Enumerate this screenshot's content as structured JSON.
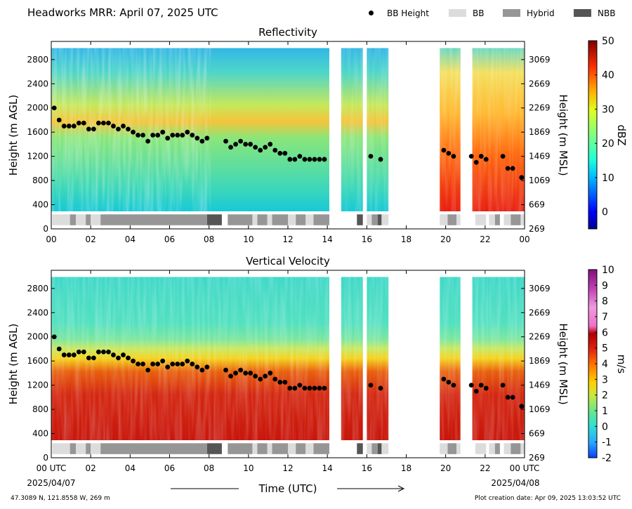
{
  "title": "Headworks MRR:  April 07, 2025 UTC",
  "legend": [
    {
      "label": "BB Height",
      "kind": "marker",
      "color": "#000000"
    },
    {
      "label": "BB",
      "kind": "swatch",
      "color": "#dcdcdc"
    },
    {
      "label": "Hybrid",
      "kind": "swatch",
      "color": "#969696"
    },
    {
      "label": "NBB",
      "kind": "swatch",
      "color": "#555555"
    }
  ],
  "footer": {
    "location": "47.3089 N, 121.8558 W, 269 m",
    "created": "Plot creation date: Apr 09, 2025 13:03:52 UTC"
  },
  "shared": {
    "xlabel": "Time (UTC)",
    "x_ticks": [
      "00",
      "02",
      "04",
      "06",
      "08",
      "10",
      "12",
      "14",
      "16",
      "18",
      "20",
      "22",
      "00"
    ],
    "x_ticks_bottom": [
      "00 UTC",
      "02",
      "04",
      "06",
      "08",
      "10",
      "12",
      "14",
      "16",
      "18",
      "20",
      "22",
      "00 UTC"
    ],
    "x_start_date": "2025/04/07",
    "x_end_date": "2025/04/08",
    "left_ylabel": "Height (m AGL)",
    "right_ylabel": "Height (m MSL)",
    "left_ticks": [
      0,
      400,
      800,
      1200,
      1600,
      2000,
      2400,
      2800
    ],
    "right_ticks": [
      269,
      669,
      1069,
      1469,
      1869,
      2269,
      2669,
      3069
    ],
    "xlim_hours": [
      0,
      24
    ],
    "ylim_m_agl": [
      0,
      3100
    ],
    "data_gaps_hours": [
      [
        14.1,
        14.7
      ],
      [
        15.8,
        16.0
      ],
      [
        17.1,
        19.7
      ],
      [
        20.75,
        21.35
      ]
    ]
  },
  "chart_data": [
    {
      "type": "heatmap",
      "title": "Reflectivity",
      "xlabel": "",
      "ylabel": "Height (m AGL)",
      "ylabel_right": "Height (m MSL)",
      "colorbar": {
        "label": "dBZ",
        "ticks": [
          0,
          10,
          20,
          30,
          40,
          50
        ],
        "range": [
          -5,
          50
        ]
      },
      "series": [
        {
          "name": "BB Height",
          "x": [
            0.15,
            0.4,
            0.65,
            0.9,
            1.15,
            1.4,
            1.65,
            1.9,
            2.15,
            2.4,
            2.65,
            2.9,
            3.15,
            3.4,
            3.65,
            3.9,
            4.15,
            4.4,
            4.65,
            4.9,
            5.15,
            5.4,
            5.65,
            5.9,
            6.15,
            6.4,
            6.65,
            6.9,
            7.15,
            7.4,
            7.65,
            7.9,
            8.85,
            9.1,
            9.35,
            9.6,
            9.85,
            10.1,
            10.35,
            10.6,
            10.85,
            11.1,
            11.35,
            11.6,
            11.85,
            12.1,
            12.35,
            12.6,
            12.85,
            13.1,
            13.35,
            13.6,
            13.85,
            16.2,
            16.7,
            19.9,
            20.15,
            20.4,
            21.3,
            21.55,
            21.8,
            22.05,
            22.9,
            23.15,
            23.4,
            23.85
          ],
          "values": [
            2000,
            1800,
            1700,
            1700,
            1700,
            1750,
            1750,
            1650,
            1650,
            1750,
            1750,
            1750,
            1700,
            1650,
            1700,
            1650,
            1600,
            1550,
            1550,
            1450,
            1550,
            1550,
            1600,
            1500,
            1550,
            1550,
            1550,
            1600,
            1550,
            1500,
            1450,
            1500,
            1450,
            1350,
            1400,
            1450,
            1400,
            1400,
            1350,
            1300,
            1350,
            1400,
            1300,
            1250,
            1250,
            1150,
            1150,
            1200,
            1150,
            1150,
            1150,
            1150,
            1150,
            1200,
            1150,
            1300,
            1250,
            1200,
            1200,
            1100,
            1200,
            1150,
            1200,
            1000,
            1000,
            850
          ]
        }
      ],
      "bb_classification": [
        {
          "class": "BB",
          "start": 0.05,
          "end": 0.95
        },
        {
          "class": "Hybrid",
          "start": 0.95,
          "end": 1.25
        },
        {
          "class": "BB",
          "start": 1.25,
          "end": 1.75
        },
        {
          "class": "Hybrid",
          "start": 1.75,
          "end": 2.0
        },
        {
          "class": "BB",
          "start": 2.0,
          "end": 2.5
        },
        {
          "class": "Hybrid",
          "start": 2.5,
          "end": 7.9
        },
        {
          "class": "NBB",
          "start": 7.9,
          "end": 8.65
        },
        {
          "class": "Hybrid",
          "start": 8.95,
          "end": 10.2
        },
        {
          "class": "BB",
          "start": 10.2,
          "end": 10.45
        },
        {
          "class": "Hybrid",
          "start": 10.45,
          "end": 10.95
        },
        {
          "class": "BB",
          "start": 10.95,
          "end": 11.2
        },
        {
          "class": "Hybrid",
          "start": 11.2,
          "end": 12.0
        },
        {
          "class": "BB",
          "start": 12.0,
          "end": 12.4
        },
        {
          "class": "Hybrid",
          "start": 12.4,
          "end": 12.9
        },
        {
          "class": "BB",
          "start": 12.9,
          "end": 13.3
        },
        {
          "class": "Hybrid",
          "start": 13.3,
          "end": 14.1
        },
        {
          "class": "NBB",
          "start": 15.5,
          "end": 15.8
        },
        {
          "class": "BB",
          "start": 16.0,
          "end": 16.25
        },
        {
          "class": "Hybrid",
          "start": 16.25,
          "end": 16.55
        },
        {
          "class": "NBB",
          "start": 16.55,
          "end": 16.75
        },
        {
          "class": "BB",
          "start": 16.75,
          "end": 17.1
        },
        {
          "class": "BB",
          "start": 19.7,
          "end": 20.1
        },
        {
          "class": "Hybrid",
          "start": 20.1,
          "end": 20.55
        },
        {
          "class": "BB",
          "start": 20.55,
          "end": 20.75
        },
        {
          "class": "BB",
          "start": 21.5,
          "end": 22.05
        },
        {
          "class": "BB",
          "start": 22.2,
          "end": 22.5
        },
        {
          "class": "Hybrid",
          "start": 22.5,
          "end": 22.75
        },
        {
          "class": "BB",
          "start": 22.95,
          "end": 23.3
        },
        {
          "class": "Hybrid",
          "start": 23.3,
          "end": 23.8
        },
        {
          "class": "BB",
          "start": 23.8,
          "end": 24.0
        }
      ]
    },
    {
      "type": "heatmap",
      "title": "Vertical Velocity",
      "xlabel": "Time (UTC)",
      "ylabel": "Height (m AGL)",
      "ylabel_right": "Height (m MSL)",
      "colorbar": {
        "label": "m/s",
        "ticks": [
          -2,
          -1,
          0,
          1,
          2,
          3,
          4,
          5,
          6,
          7,
          8,
          9,
          10
        ],
        "range": [
          -2,
          10
        ]
      },
      "series": [
        {
          "name": "BB Height",
          "x": [
            0.15,
            0.4,
            0.65,
            0.9,
            1.15,
            1.4,
            1.65,
            1.9,
            2.15,
            2.4,
            2.65,
            2.9,
            3.15,
            3.4,
            3.65,
            3.9,
            4.15,
            4.4,
            4.65,
            4.9,
            5.15,
            5.4,
            5.65,
            5.9,
            6.15,
            6.4,
            6.65,
            6.9,
            7.15,
            7.4,
            7.65,
            7.9,
            8.85,
            9.1,
            9.35,
            9.6,
            9.85,
            10.1,
            10.35,
            10.6,
            10.85,
            11.1,
            11.35,
            11.6,
            11.85,
            12.1,
            12.35,
            12.6,
            12.85,
            13.1,
            13.35,
            13.6,
            13.85,
            16.2,
            16.7,
            19.9,
            20.15,
            20.4,
            21.3,
            21.55,
            21.8,
            22.05,
            22.9,
            23.15,
            23.4,
            23.85
          ],
          "values": [
            2000,
            1800,
            1700,
            1700,
            1700,
            1750,
            1750,
            1650,
            1650,
            1750,
            1750,
            1750,
            1700,
            1650,
            1700,
            1650,
            1600,
            1550,
            1550,
            1450,
            1550,
            1550,
            1600,
            1500,
            1550,
            1550,
            1550,
            1600,
            1550,
            1500,
            1450,
            1500,
            1450,
            1350,
            1400,
            1450,
            1400,
            1400,
            1350,
            1300,
            1350,
            1400,
            1300,
            1250,
            1250,
            1150,
            1150,
            1200,
            1150,
            1150,
            1150,
            1150,
            1150,
            1200,
            1150,
            1300,
            1250,
            1200,
            1200,
            1100,
            1200,
            1150,
            1200,
            1000,
            1000,
            850
          ]
        }
      ],
      "bb_classification": "same as Reflectivity"
    }
  ]
}
